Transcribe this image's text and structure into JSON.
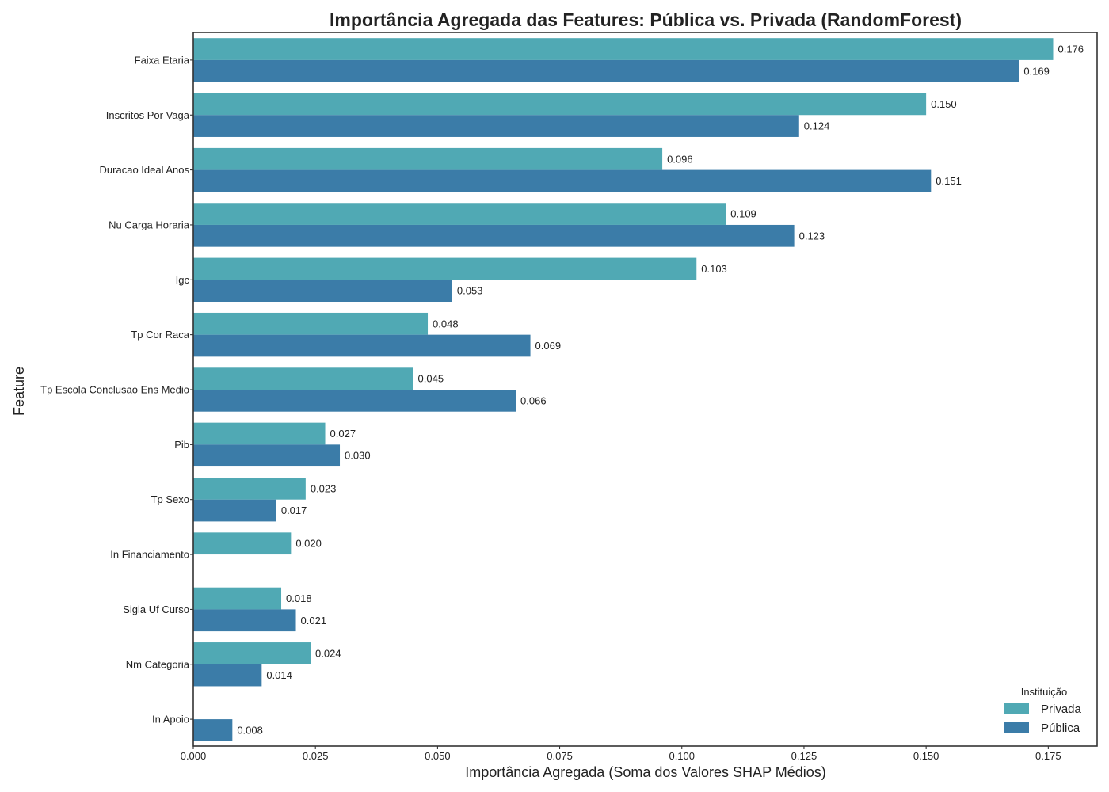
{
  "chart_data": {
    "type": "bar",
    "orientation": "horizontal",
    "title": "Importância Agregada das Features: Pública vs. Privada (RandomForest)",
    "xlabel": "Importância Agregada (Soma dos Valores SHAP Médios)",
    "ylabel": "Feature",
    "xlim": [
      0,
      0.185
    ],
    "x_ticks": [
      0,
      0.025,
      0.05,
      0.075,
      0.1,
      0.125,
      0.15,
      0.175
    ],
    "x_tick_labels": [
      "0.000",
      "0.025",
      "0.050",
      "0.075",
      "0.100",
      "0.125",
      "0.150",
      "0.175"
    ],
    "grid": false,
    "legend": {
      "title": "Instituição",
      "position": "bottom-right"
    },
    "categories": [
      "Faixa Etaria",
      "Inscritos Por Vaga",
      "Duracao Ideal Anos",
      "Nu Carga Horaria",
      "Igc",
      "Tp Cor Raca",
      "Tp Escola Conclusao Ens Medio",
      "Pib",
      "Tp Sexo",
      "In Financiamento",
      "Sigla Uf Curso",
      "Nm Categoria",
      "In Apoio"
    ],
    "series": [
      {
        "name": "Privada",
        "color": "#50a9b4",
        "values": [
          0.176,
          0.15,
          0.096,
          0.109,
          0.103,
          0.048,
          0.045,
          0.027,
          0.023,
          0.02,
          0.018,
          0.024,
          null
        ],
        "labels": [
          "0.176",
          "0.150",
          "0.096",
          "0.109",
          "0.103",
          "0.048",
          "0.045",
          "0.027",
          "0.023",
          "0.020",
          "0.018",
          "0.024",
          ""
        ]
      },
      {
        "name": "Pública",
        "color": "#3b7ca8",
        "values": [
          0.169,
          0.124,
          0.151,
          0.123,
          0.053,
          0.069,
          0.066,
          0.03,
          0.017,
          null,
          0.021,
          0.014,
          0.008
        ],
        "labels": [
          "0.169",
          "0.124",
          "0.151",
          "0.123",
          "0.053",
          "0.069",
          "0.066",
          "0.030",
          "0.017",
          "",
          "0.021",
          "0.014",
          "0.008"
        ]
      }
    ]
  }
}
